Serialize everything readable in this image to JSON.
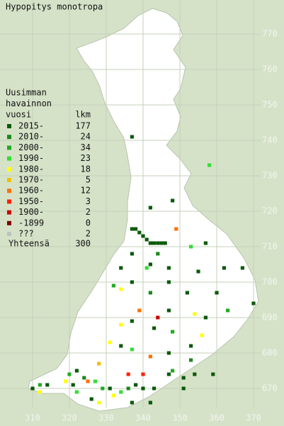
{
  "title": "Hypopitys monotropa",
  "legend": {
    "heading": [
      "Uusimman",
      "havainnon",
      "vuosi"
    ],
    "count_heading": "lkm",
    "entries": [
      {
        "label": "2015-",
        "color": "#0a5a0a",
        "count": 177
      },
      {
        "label": "2010-",
        "color": "#1a8a1a",
        "count": 24
      },
      {
        "label": "2000-",
        "color": "#22aa22",
        "count": 34
      },
      {
        "label": "1990-",
        "color": "#33dd33",
        "count": 23
      },
      {
        "label": "1980-",
        "color": "#ffff00",
        "count": 18
      },
      {
        "label": "1970-",
        "color": "#f0c000",
        "count": 5
      },
      {
        "label": "1960-",
        "color": "#ff7000",
        "count": 12
      },
      {
        "label": "1950-",
        "color": "#ff2000",
        "count": 3
      },
      {
        "label": "1900-",
        "color": "#cc0000",
        "count": 2
      },
      {
        "label": "-1899",
        "color": "#800000",
        "count": 0
      },
      {
        "label": "???",
        "color": "#c0c0c0",
        "count": 2
      }
    ],
    "total_label": "Yhteensä",
    "total": 300
  },
  "x_ticks": [
    310,
    320,
    330,
    340,
    350,
    360,
    370
  ],
  "y_ticks": [
    770,
    760,
    750,
    740,
    730,
    720,
    710,
    700,
    690,
    680,
    670
  ],
  "observations": [
    [
      337,
      741,
      0
    ],
    [
      358,
      733,
      3
    ],
    [
      348,
      723,
      0
    ],
    [
      342,
      721,
      0
    ],
    [
      349,
      715,
      6
    ],
    [
      337,
      715,
      0
    ],
    [
      338,
      715,
      0
    ],
    [
      339,
      714,
      0
    ],
    [
      340,
      713,
      0
    ],
    [
      341,
      712,
      0
    ],
    [
      342,
      711,
      0
    ],
    [
      343,
      711,
      0
    ],
    [
      344,
      711,
      0
    ],
    [
      345,
      711,
      0
    ],
    [
      346,
      711,
      0
    ],
    [
      357,
      711,
      0
    ],
    [
      353,
      710,
      3
    ],
    [
      337,
      708,
      0
    ],
    [
      344,
      708,
      1
    ],
    [
      342,
      705,
      0
    ],
    [
      341,
      704,
      3
    ],
    [
      347,
      704,
      0
    ],
    [
      334,
      704,
      0
    ],
    [
      355,
      703,
      0
    ],
    [
      362,
      704,
      0
    ],
    [
      367,
      704,
      0
    ],
    [
      332,
      699,
      2
    ],
    [
      334,
      698,
      4
    ],
    [
      337,
      700,
      0
    ],
    [
      347,
      700,
      0
    ],
    [
      342,
      697,
      1
    ],
    [
      352,
      697,
      0
    ],
    [
      360,
      697,
      0
    ],
    [
      370,
      694,
      0
    ],
    [
      339,
      692,
      6
    ],
    [
      344,
      690,
      8
    ],
    [
      347,
      692,
      0
    ],
    [
      354,
      691,
      4
    ],
    [
      357,
      690,
      0
    ],
    [
      363,
      692,
      2
    ],
    [
      334,
      688,
      4
    ],
    [
      337,
      689,
      0
    ],
    [
      343,
      687,
      0
    ],
    [
      348,
      686,
      2
    ],
    [
      356,
      685,
      4
    ],
    [
      331,
      683,
      4
    ],
    [
      334,
      682,
      0
    ],
    [
      337,
      681,
      3
    ],
    [
      342,
      679,
      6
    ],
    [
      347,
      680,
      0
    ],
    [
      353,
      682,
      0
    ],
    [
      353,
      678,
      1
    ],
    [
      348,
      675,
      2
    ],
    [
      340,
      674,
      7
    ],
    [
      336,
      674,
      7
    ],
    [
      328,
      677,
      5
    ],
    [
      322,
      675,
      0
    ],
    [
      320,
      674,
      2
    ],
    [
      319,
      672,
      4
    ],
    [
      321,
      671,
      0
    ],
    [
      324,
      673,
      1
    ],
    [
      325,
      672,
      6
    ],
    [
      327,
      672,
      3
    ],
    [
      329,
      670,
      2
    ],
    [
      331,
      670,
      0
    ],
    [
      332,
      668,
      4
    ],
    [
      334,
      669,
      3
    ],
    [
      336,
      670,
      1
    ],
    [
      338,
      671,
      0
    ],
    [
      340,
      670,
      0
    ],
    [
      343,
      670,
      0
    ],
    [
      347,
      674,
      0
    ],
    [
      351,
      673,
      0
    ],
    [
      354,
      674,
      0
    ],
    [
      351,
      670,
      0
    ],
    [
      326,
      667,
      0
    ],
    [
      328,
      666,
      4
    ],
    [
      312,
      671,
      2
    ],
    [
      314,
      671,
      0
    ],
    [
      310,
      670,
      0
    ],
    [
      312,
      669,
      4
    ],
    [
      359,
      674,
      0
    ],
    [
      342,
      666,
      0
    ],
    [
      337,
      666,
      0
    ],
    [
      322,
      669,
      3
    ]
  ]
}
